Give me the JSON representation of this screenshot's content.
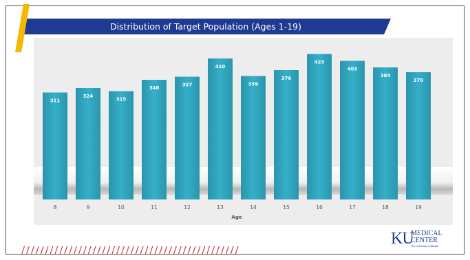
{
  "slide": {
    "title": "Distribution of Target Population (Ages 1-19)",
    "logo": {
      "mark": "KU",
      "line1": "MEDICAL",
      "line2": "CENTER",
      "line3": "The University of Kansas"
    }
  },
  "colors": {
    "banner": "#1f3a93",
    "accent": "#f5b800",
    "bar": "#2ea3bd",
    "hatch": "#c0161c",
    "chart_bg": "#ededed"
  },
  "chart_data": {
    "type": "bar",
    "categories": [
      "8",
      "9",
      "10",
      "11",
      "12",
      "13",
      "14",
      "15",
      "16",
      "17",
      "18",
      "19"
    ],
    "values": [
      311,
      324,
      315,
      348,
      357,
      410,
      359,
      376,
      423,
      403,
      384,
      370
    ],
    "xlabel": "Age",
    "ylabel": "",
    "ylim": [
      0,
      450
    ],
    "data_labels": true,
    "grid": false,
    "legend": "none"
  }
}
